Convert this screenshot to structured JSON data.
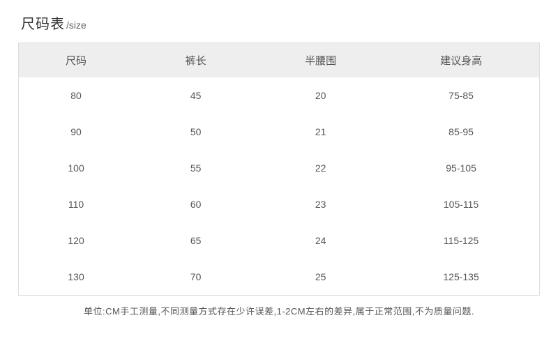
{
  "title": {
    "cn": "尺码表",
    "en": "/size"
  },
  "table": {
    "type": "table",
    "header_bg": "#eeeeee",
    "border_color": "#dddddd",
    "text_color": "#555555",
    "columns": [
      "尺码",
      "裤长",
      "半腰围",
      "建议身高"
    ],
    "rows": [
      [
        "80",
        "45",
        "20",
        "75-85"
      ],
      [
        "90",
        "50",
        "21",
        "85-95"
      ],
      [
        "100",
        "55",
        "22",
        "95-105"
      ],
      [
        "110",
        "60",
        "23",
        "105-115"
      ],
      [
        "120",
        "65",
        "24",
        "115-125"
      ],
      [
        "130",
        "70",
        "25",
        "125-135"
      ]
    ]
  },
  "footnote": "单位:CM手工测量,不同测量方式存在少许误差,1-2CM左右的差异,属于正常范围,不为质量问题."
}
